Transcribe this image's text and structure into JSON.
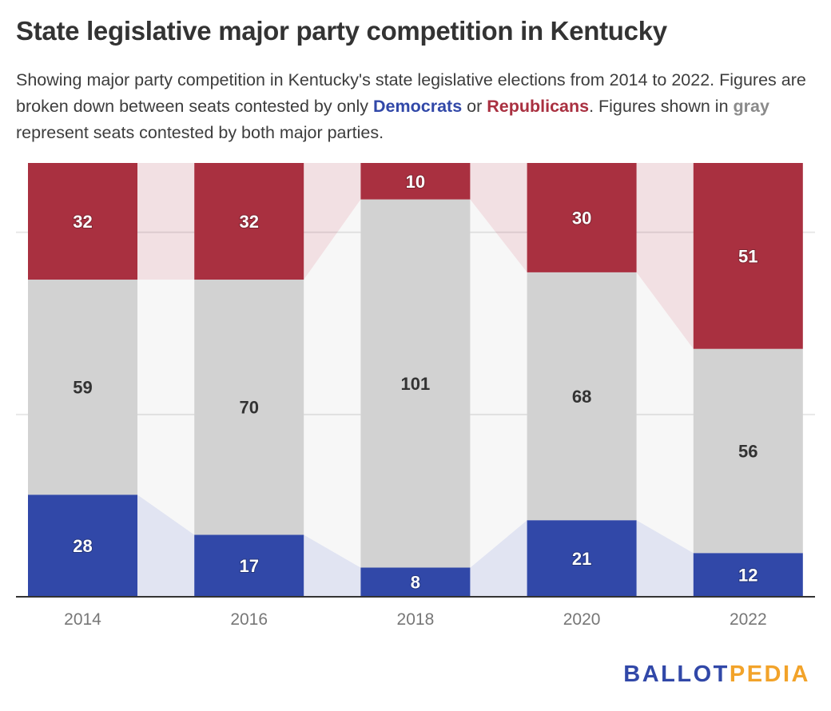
{
  "header": {
    "title": "State legislative major party competition in Kentucky",
    "subtitle_parts": {
      "p1": "Showing major party competition in Kentucky's state legislative elections from 2014 to 2022. Figures are broken down between seats contested by only ",
      "dem": "Democrats",
      "p2": " or ",
      "rep": "Republicans",
      "p3": ". Figures shown in ",
      "gray": "gray",
      "p4": " represent seats contested by both major parties."
    }
  },
  "logo": {
    "part1": "BALLOT",
    "part2": "PEDIA"
  },
  "colors": {
    "democrat": "#3148a8",
    "republican": "#a93040",
    "both": "#d2d2d2",
    "democrat_band": "#e1e4f2",
    "republican_band": "#f2e0e3",
    "both_band": "#f7f7f7",
    "brand_blue": "#3148a8",
    "brand_orange": "#f2a32a"
  },
  "chart_data": {
    "type": "bar",
    "stacked": true,
    "title": "State legislative major party competition in Kentucky",
    "xlabel": "",
    "ylabel": "",
    "categories": [
      "2014",
      "2016",
      "2018",
      "2020",
      "2022"
    ],
    "series": [
      {
        "name": "Democrats only",
        "values": [
          28,
          17,
          8,
          21,
          12
        ]
      },
      {
        "name": "Both major parties",
        "values": [
          59,
          70,
          101,
          68,
          56
        ]
      },
      {
        "name": "Republicans only",
        "values": [
          32,
          32,
          10,
          30,
          51
        ]
      }
    ],
    "ylim": [
      0,
      119
    ],
    "gridlines": [
      50,
      100
    ],
    "grid": true,
    "legend": "inline-in-subtitle"
  }
}
